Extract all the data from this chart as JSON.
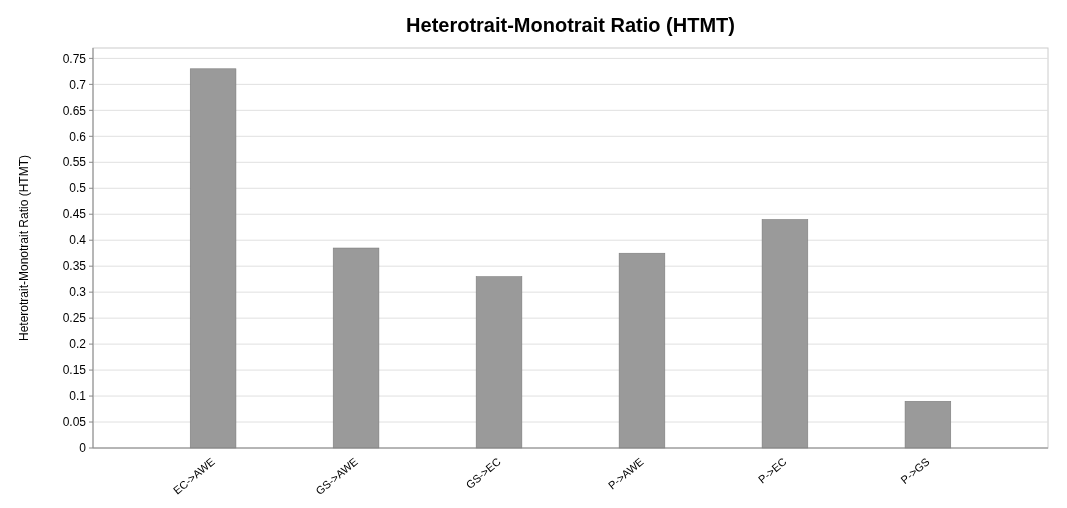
{
  "chart_data": {
    "type": "bar",
    "title": "Heterotrait-Monotrait Ratio (HTMT)",
    "ylabel": "Heterotrait-Monotrait Ratio (HTMT)",
    "categories": [
      "EC->AWE",
      "GS->AWE",
      "GS->EC",
      "P->AWE",
      "P->EC",
      "P->GS"
    ],
    "values": [
      0.73,
      0.385,
      0.33,
      0.375,
      0.44,
      0.09
    ],
    "color": "#9a9a9a",
    "ylim": [
      0,
      0.77
    ],
    "yticks": [
      0,
      0.05,
      0.1,
      0.15,
      0.2,
      0.25,
      0.3,
      0.35,
      0.4,
      0.45,
      0.5,
      0.55,
      0.6,
      0.65,
      0.7,
      0.75
    ],
    "grid": "y"
  }
}
